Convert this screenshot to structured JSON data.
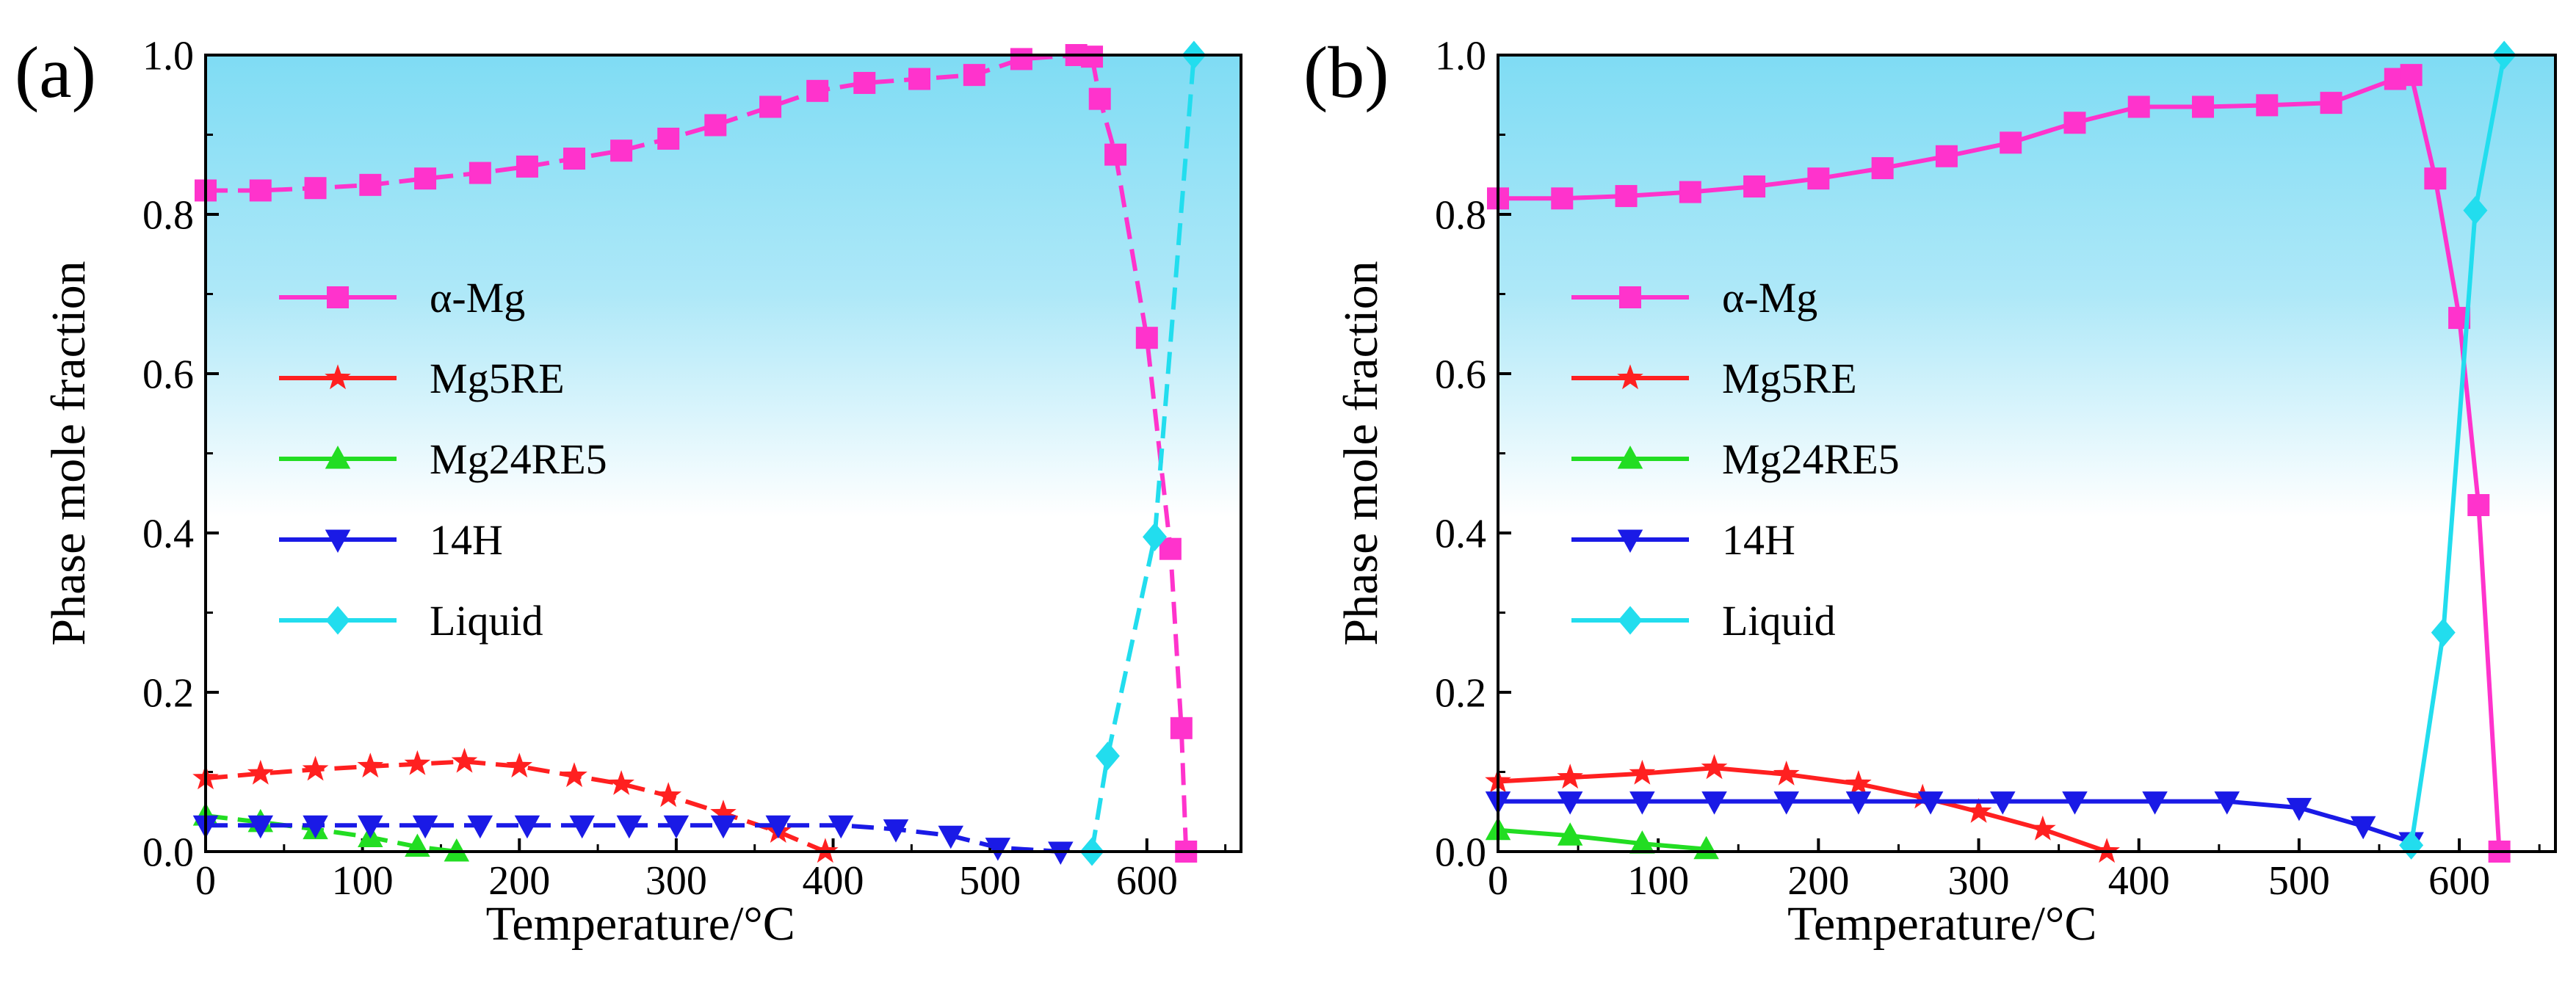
{
  "chart_data": [
    {
      "panel_label": "(a)",
      "type": "line",
      "xlabel": "Temperature/°C",
      "ylabel": "Phase mole fraction",
      "xlim": [
        0,
        660
      ],
      "ylim": [
        0,
        1.0
      ],
      "xticks": [
        "0",
        "100",
        "200",
        "300",
        "400",
        "500",
        "600"
      ],
      "yticks": [
        "0.0",
        "0.2",
        "0.4",
        "0.6",
        "0.8",
        "1.0"
      ],
      "line_style": "dashed",
      "legend_position": "left",
      "series": [
        {
          "name": "α-Mg",
          "color": "#ff33cc",
          "marker": "square",
          "x": [
            0,
            35,
            70,
            105,
            140,
            175,
            205,
            235,
            265,
            295,
            325,
            360,
            390,
            420,
            455,
            490,
            520,
            555,
            565,
            570,
            580,
            600,
            615,
            622,
            625
          ],
          "y": [
            0.83,
            0.83,
            0.833,
            0.837,
            0.845,
            0.852,
            0.86,
            0.87,
            0.88,
            0.895,
            0.912,
            0.935,
            0.955,
            0.965,
            0.97,
            0.975,
            0.995,
            1.0,
            0.998,
            0.945,
            0.875,
            0.645,
            0.38,
            0.155,
            0.0
          ]
        },
        {
          "name": "Mg5RE",
          "color": "#ff2020",
          "marker": "star",
          "x": [
            0,
            35,
            70,
            105,
            135,
            165,
            200,
            235,
            265,
            295,
            330,
            365,
            395
          ],
          "y": [
            0.092,
            0.098,
            0.103,
            0.107,
            0.11,
            0.113,
            0.107,
            0.095,
            0.085,
            0.07,
            0.048,
            0.025,
            0.0
          ]
        },
        {
          "name": "Mg24RE5",
          "color": "#22dd22",
          "marker": "triangle-up",
          "x": [
            0,
            35,
            70,
            105,
            135,
            160
          ],
          "y": [
            0.045,
            0.037,
            0.028,
            0.018,
            0.006,
            0.0
          ]
        },
        {
          "name": "14H",
          "color": "#1a1ae6",
          "marker": "triangle-down",
          "x": [
            0,
            35,
            70,
            105,
            140,
            175,
            205,
            240,
            270,
            300,
            330,
            365,
            405,
            440,
            475,
            505,
            545
          ],
          "y": [
            0.033,
            0.033,
            0.033,
            0.033,
            0.033,
            0.033,
            0.033,
            0.033,
            0.033,
            0.033,
            0.033,
            0.033,
            0.033,
            0.028,
            0.02,
            0.005,
            0.0
          ]
        },
        {
          "name": "Liquid",
          "color": "#22ddee",
          "marker": "diamond",
          "x": [
            565,
            575,
            605,
            630
          ],
          "y": [
            0.0,
            0.12,
            0.395,
            1.0
          ]
        }
      ]
    },
    {
      "panel_label": "(b)",
      "type": "line",
      "xlabel": "Temperature/°C",
      "ylabel": "Phase mole fraction",
      "xlim": [
        0,
        660
      ],
      "ylim": [
        0,
        1.0
      ],
      "xticks": [
        "0",
        "100",
        "200",
        "300",
        "400",
        "500",
        "600"
      ],
      "yticks": [
        "0.0",
        "0.2",
        "0.4",
        "0.6",
        "0.8",
        "1.0"
      ],
      "line_style": "solid",
      "legend_position": "left",
      "series": [
        {
          "name": "α-Mg",
          "color": "#ff33cc",
          "marker": "square",
          "x": [
            0,
            40,
            80,
            120,
            160,
            200,
            240,
            280,
            320,
            360,
            400,
            440,
            480,
            520,
            560,
            570,
            585,
            600,
            612,
            625
          ],
          "y": [
            0.82,
            0.82,
            0.823,
            0.828,
            0.835,
            0.845,
            0.858,
            0.873,
            0.89,
            0.915,
            0.935,
            0.935,
            0.937,
            0.94,
            0.97,
            0.975,
            0.845,
            0.67,
            0.435,
            0.0
          ]
        },
        {
          "name": "Mg5RE",
          "color": "#ff2020",
          "marker": "star",
          "x": [
            0,
            45,
            90,
            135,
            180,
            225,
            265,
            300,
            340,
            380
          ],
          "y": [
            0.088,
            0.093,
            0.098,
            0.105,
            0.097,
            0.085,
            0.068,
            0.05,
            0.028,
            0.0
          ]
        },
        {
          "name": "Mg24RE5",
          "color": "#22dd22",
          "marker": "triangle-up",
          "x": [
            0,
            45,
            90,
            130
          ],
          "y": [
            0.027,
            0.02,
            0.01,
            0.003
          ]
        },
        {
          "name": "14H",
          "color": "#1a1ae6",
          "marker": "triangle-down",
          "x": [
            0,
            45,
            90,
            135,
            180,
            225,
            270,
            315,
            360,
            410,
            455,
            500,
            540,
            570
          ],
          "y": [
            0.063,
            0.063,
            0.063,
            0.063,
            0.063,
            0.063,
            0.063,
            0.063,
            0.063,
            0.063,
            0.063,
            0.055,
            0.032,
            0.012
          ]
        },
        {
          "name": "Liquid",
          "color": "#22ddee",
          "marker": "diamond",
          "x": [
            570,
            590,
            610,
            628
          ],
          "y": [
            0.008,
            0.275,
            0.805,
            1.0
          ]
        }
      ]
    }
  ]
}
